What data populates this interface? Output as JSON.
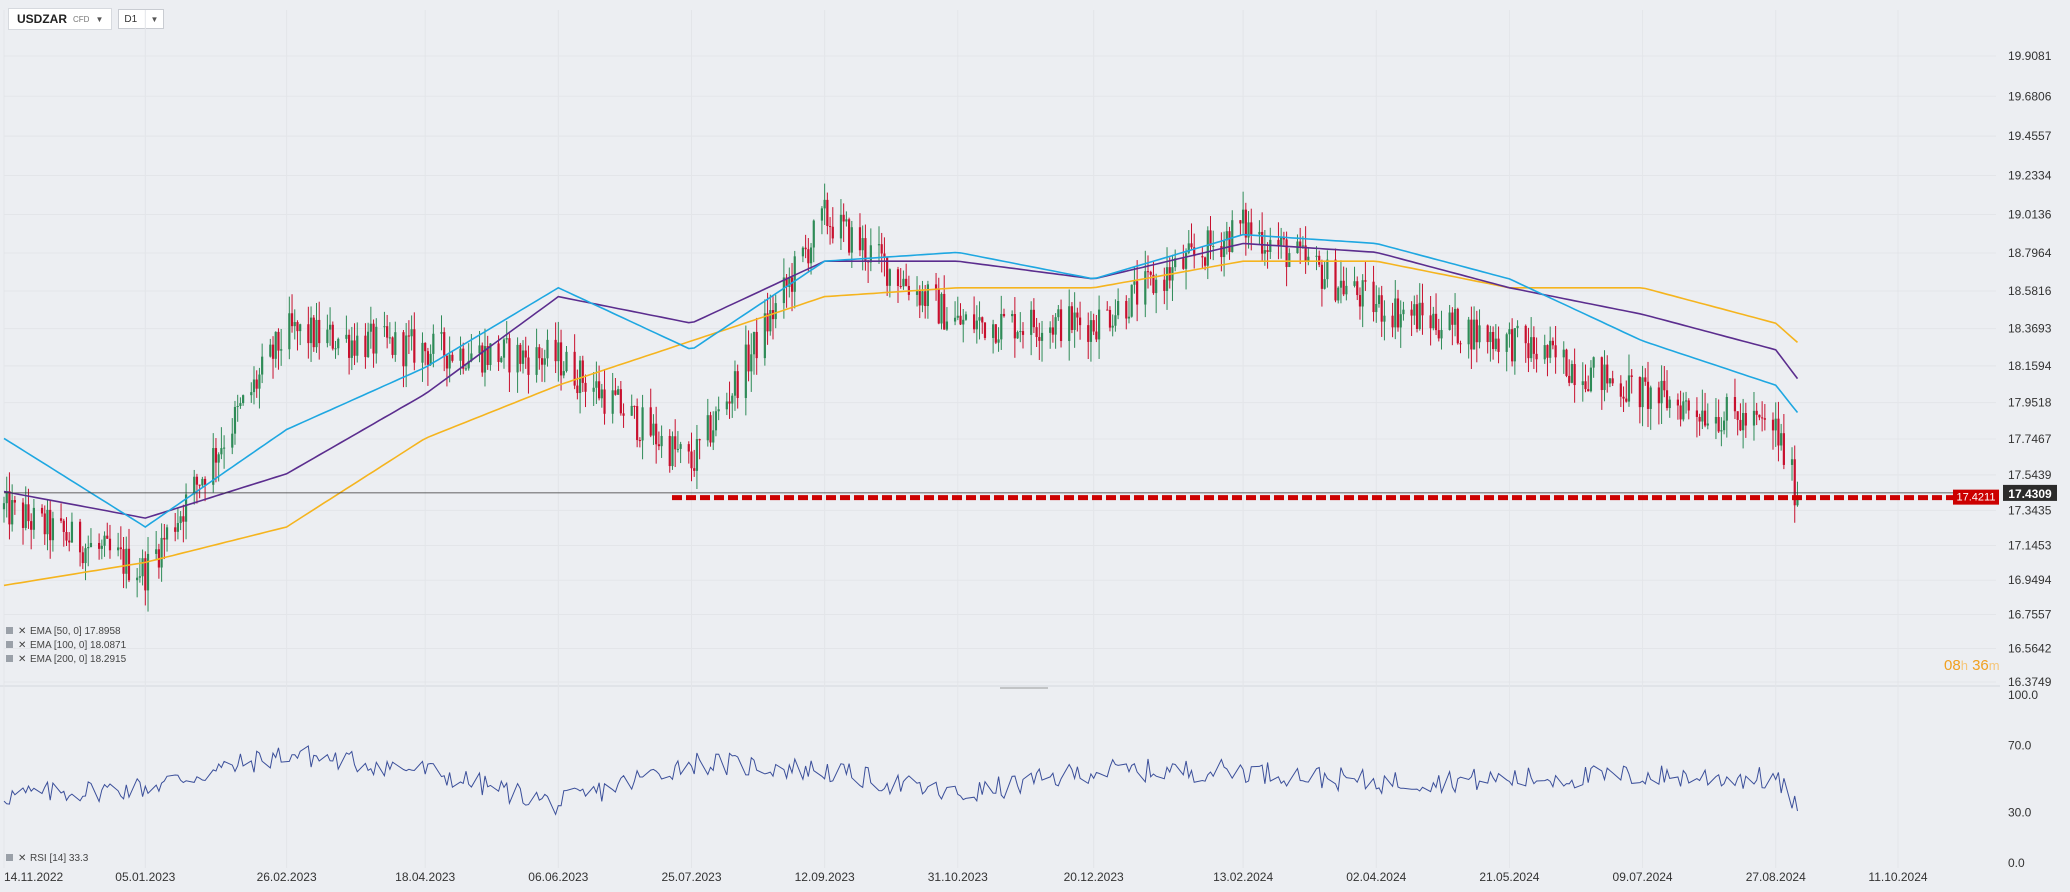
{
  "header": {
    "symbol": "USDZAR",
    "instrument_type": "CFD",
    "timeframe": "D1"
  },
  "countdown": {
    "hours": "08",
    "hours_unit": "h",
    "minutes": "36",
    "minutes_unit": "m"
  },
  "colors": {
    "background": "#eceef2",
    "bull_candle": "#2e8b57",
    "bear_candle": "#c8102e",
    "ema50": "#1ea7e1",
    "ema100": "#5b2d8e",
    "ema200": "#f5b41e",
    "support_line": "#cc0000",
    "rsi_line": "#3b4f9a",
    "price_marker": "#2b2b2b"
  },
  "price_axis": {
    "ticks": [
      "19.9081",
      "19.6806",
      "19.4557",
      "19.2334",
      "19.0136",
      "18.7964",
      "18.5816",
      "18.3693",
      "18.1594",
      "17.9518",
      "17.7467",
      "17.5439",
      "17.3435",
      "17.1453",
      "16.9494",
      "16.7557",
      "16.5642",
      "16.3749"
    ]
  },
  "date_axis": {
    "ticks": [
      "14.11.2022",
      "05.01.2023",
      "26.02.2023",
      "18.04.2023",
      "06.06.2023",
      "25.07.2023",
      "12.09.2023",
      "31.10.2023",
      "20.12.2023",
      "13.02.2024",
      "02.04.2024",
      "21.05.2024",
      "09.07.2024",
      "27.08.2024",
      "11.10.2024"
    ]
  },
  "rsi_axis": {
    "ticks": [
      "100.0",
      "70.0",
      "30.0",
      "0.0"
    ]
  },
  "current_price": "17.4309",
  "support_price": "17.4211",
  "indicators": {
    "ema50": "EMA [50, 0]  17.8958",
    "ema100": "EMA [100, 0]  18.0871",
    "ema200": "EMA [200, 0]  18.2915",
    "rsi": "RSI [14]  33.3"
  },
  "chart_data": {
    "type": "candlestick",
    "symbol": "USDZAR",
    "timeframe": "D1",
    "ylim": [
      16.3749,
      20.0
    ],
    "x_range": [
      "14.11.2022",
      "11.10.2024"
    ],
    "series": [
      {
        "name": "EMA [50, 0]",
        "last": 17.8958
      },
      {
        "name": "EMA [100, 0]",
        "last": 18.0871
      },
      {
        "name": "EMA [200, 0]",
        "last": 18.2915
      },
      {
        "name": "RSI [14]",
        "last": 33.3
      }
    ],
    "close_path": [
      [
        "14.11.2022",
        17.35
      ],
      [
        "05.01.2023",
        17.0
      ],
      [
        "26.02.2023",
        18.35
      ],
      [
        "18.04.2023",
        18.25
      ],
      [
        "06.06.2023",
        18.2
      ],
      [
        "25.07.2023",
        17.6
      ],
      [
        "12.09.2023",
        19.0
      ],
      [
        "31.10.2023",
        18.4
      ],
      [
        "20.12.2023",
        18.4
      ],
      [
        "13.02.2024",
        18.95
      ],
      [
        "02.04.2024",
        18.5
      ],
      [
        "21.05.2024",
        18.3
      ],
      [
        "09.07.2024",
        18.0
      ],
      [
        "27.08.2024",
        17.8
      ],
      [
        "04.09.2024",
        17.4309
      ]
    ],
    "ema50_path": [
      [
        "14.11.2022",
        17.75
      ],
      [
        "05.01.2023",
        17.25
      ],
      [
        "26.02.2023",
        17.8
      ],
      [
        "18.04.2023",
        18.15
      ],
      [
        "06.06.2023",
        18.6
      ],
      [
        "25.07.2023",
        18.25
      ],
      [
        "12.09.2023",
        18.75
      ],
      [
        "31.10.2023",
        18.8
      ],
      [
        "20.12.2023",
        18.65
      ],
      [
        "13.02.2024",
        18.9
      ],
      [
        "02.04.2024",
        18.85
      ],
      [
        "21.05.2024",
        18.65
      ],
      [
        "09.07.2024",
        18.3
      ],
      [
        "27.08.2024",
        18.05
      ],
      [
        "04.09.2024",
        17.8958
      ]
    ],
    "ema100_path": [
      [
        "14.11.2022",
        17.45
      ],
      [
        "05.01.2023",
        17.3
      ],
      [
        "26.02.2023",
        17.55
      ],
      [
        "18.04.2023",
        18.0
      ],
      [
        "06.06.2023",
        18.55
      ],
      [
        "25.07.2023",
        18.4
      ],
      [
        "12.09.2023",
        18.75
      ],
      [
        "31.10.2023",
        18.75
      ],
      [
        "20.12.2023",
        18.65
      ],
      [
        "13.02.2024",
        18.85
      ],
      [
        "02.04.2024",
        18.8
      ],
      [
        "21.05.2024",
        18.6
      ],
      [
        "09.07.2024",
        18.45
      ],
      [
        "27.08.2024",
        18.25
      ],
      [
        "04.09.2024",
        18.0871
      ]
    ],
    "ema200_path": [
      [
        "14.11.2022",
        16.92
      ],
      [
        "05.01.2023",
        17.05
      ],
      [
        "26.02.2023",
        17.25
      ],
      [
        "18.04.2023",
        17.75
      ],
      [
        "06.06.2023",
        18.05
      ],
      [
        "25.07.2023",
        18.3
      ],
      [
        "12.09.2023",
        18.55
      ],
      [
        "31.10.2023",
        18.6
      ],
      [
        "20.12.2023",
        18.6
      ],
      [
        "13.02.2024",
        18.75
      ],
      [
        "02.04.2024",
        18.75
      ],
      [
        "21.05.2024",
        18.6
      ],
      [
        "09.07.2024",
        18.6
      ],
      [
        "27.08.2024",
        18.4
      ],
      [
        "04.09.2024",
        18.2915
      ]
    ],
    "rsi_path": [
      [
        "14.11.2022",
        40
      ],
      [
        "05.01.2023",
        45
      ],
      [
        "26.02.2023",
        65
      ],
      [
        "18.04.2023",
        55
      ],
      [
        "06.06.2023",
        35
      ],
      [
        "25.07.2023",
        60
      ],
      [
        "12.09.2023",
        55
      ],
      [
        "31.10.2023",
        40
      ],
      [
        "20.12.2023",
        55
      ],
      [
        "13.02.2024",
        55
      ],
      [
        "02.04.2024",
        48
      ],
      [
        "21.05.2024",
        50
      ],
      [
        "09.07.2024",
        52
      ],
      [
        "27.08.2024",
        50
      ],
      [
        "04.09.2024",
        33.3
      ]
    ]
  }
}
